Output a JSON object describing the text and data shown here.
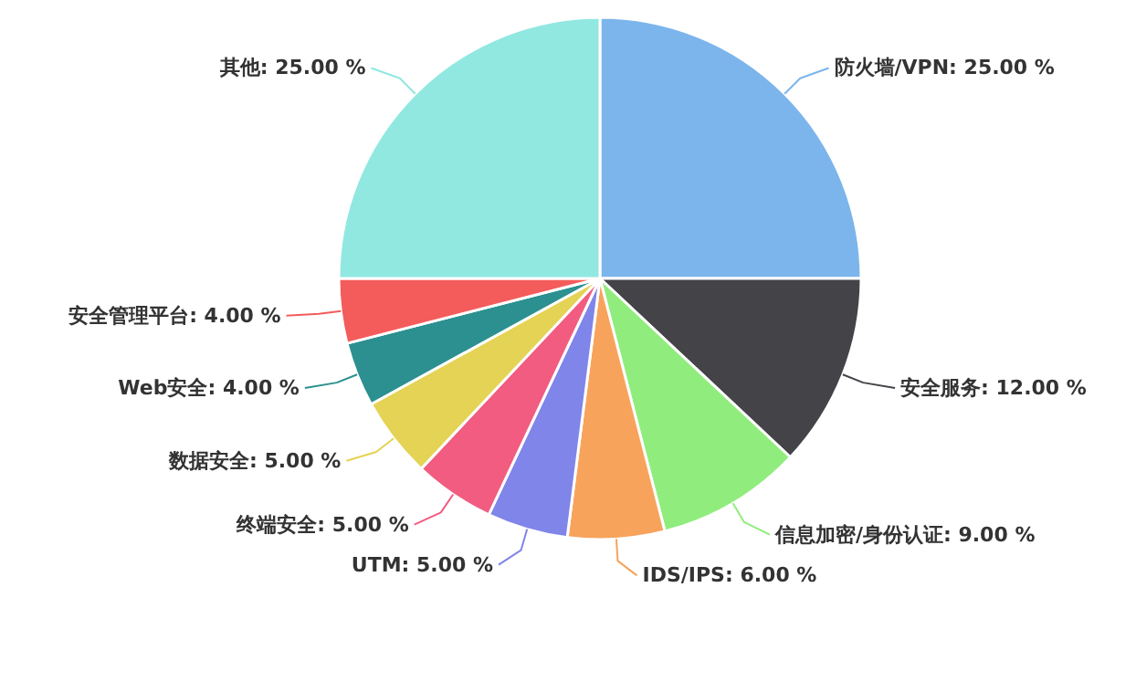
{
  "chart_data": {
    "type": "pie",
    "categories": [
      "防火墙/VPN",
      "安全服务",
      "信息加密/身份认证",
      "IDS/IPS",
      "UTM",
      "终端安全",
      "数据安全",
      "Web安全",
      "安全管理平台",
      "其他"
    ],
    "values": [
      25,
      12,
      9,
      6,
      5,
      5,
      5,
      4,
      4,
      25
    ],
    "value_labels": [
      "25.00 %",
      "12.00 %",
      "9.00 %",
      "6.00 %",
      "5.00 %",
      "5.00 %",
      "5.00 %",
      "4.00 %",
      "4.00 %",
      "25.00 %"
    ],
    "colors": [
      "#7cb5ec",
      "#434348",
      "#90ed7d",
      "#f7a35c",
      "#8085e9",
      "#f15c80",
      "#e4d354",
      "#2b908f",
      "#f45b5b",
      "#91e8e1"
    ]
  }
}
